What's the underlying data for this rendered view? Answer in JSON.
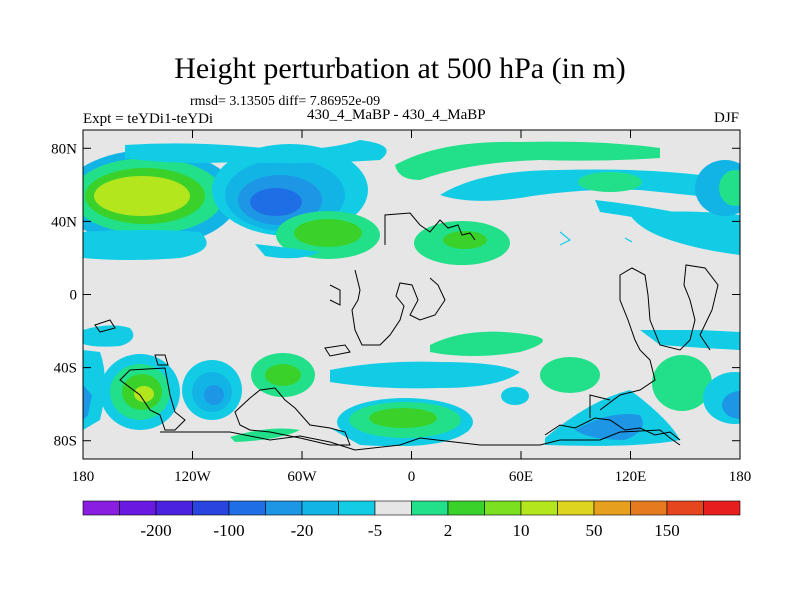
{
  "title": "Height perturbation at 500 hPa (in m)",
  "stats_line": "rmsd= 3.13505 diff= 7.86952e-09",
  "left_label": "Expt = teYDi1-teYDi",
  "center_label": "430_4_MaBP - 430_4_MaBP",
  "right_label": "DJF",
  "axes": {
    "lat_ticks": [
      {
        "value": 80,
        "label": "80N"
      },
      {
        "value": 40,
        "label": "40N"
      },
      {
        "value": 0,
        "label": "0"
      },
      {
        "value": -40,
        "label": "40S"
      },
      {
        "value": -80,
        "label": "80S"
      }
    ],
    "lon_ticks": [
      {
        "value": -180,
        "label": "180"
      },
      {
        "value": -120,
        "label": "120W"
      },
      {
        "value": -60,
        "label": "60W"
      },
      {
        "value": 0,
        "label": "0"
      },
      {
        "value": 60,
        "label": "60E"
      },
      {
        "value": 120,
        "label": "120E"
      },
      {
        "value": 180,
        "label": "180"
      }
    ],
    "lat_range": [
      -90,
      90
    ],
    "lon_range": [
      -180,
      180
    ]
  },
  "colorbar": {
    "colors": [
      "#8a1ee0",
      "#6a1ae0",
      "#4a22e0",
      "#2a44e0",
      "#1e6ee6",
      "#1e96e6",
      "#12b4e6",
      "#12cce6",
      "#e6e6e6",
      "#22e08a",
      "#3ad22a",
      "#7ae020",
      "#b4e61e",
      "#dcd41e",
      "#e6a01e",
      "#e67a1e",
      "#e6461e",
      "#e61e1e"
    ],
    "labels": [
      "-200",
      "-100",
      "-20",
      "-5",
      "2",
      "10",
      "50",
      "150"
    ]
  },
  "colors": {
    "background": "#e6e6e6",
    "coast": "#000000"
  }
}
